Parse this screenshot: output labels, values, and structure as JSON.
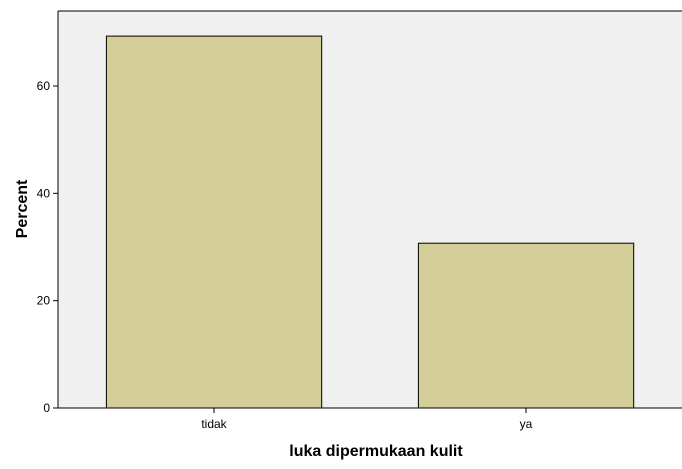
{
  "chart_data": {
    "type": "bar",
    "categories": [
      "tidak",
      "ya"
    ],
    "values": [
      69.3,
      30.7
    ],
    "xlabel": "luka dipermukaan kulit",
    "ylabel": "Percent",
    "ylim": [
      0,
      70
    ],
    "yticks": [
      0,
      20,
      40,
      60
    ],
    "grid": false,
    "colors": {
      "plot_background": "#f0f0f0",
      "bar_fill": "#d3ce97",
      "bar_stroke": "#000000"
    }
  }
}
